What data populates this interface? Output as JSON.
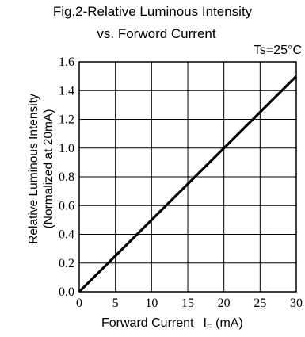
{
  "chart_data": {
    "type": "line",
    "title": "Fig.2-Relative Luminous Intensity",
    "subtitle": "vs. Forword Current",
    "condition": "Ts=25°C",
    "ylabel_line1": "Relative Luminous Intensity",
    "ylabel_line2": "(Normalized at 20mA)",
    "xlabel_text": "Forward Current",
    "xlabel_symbol": "I",
    "xlabel_subscript": "F",
    "xlabel_unit": "(mA)",
    "xlim": [
      0,
      30
    ],
    "ylim": [
      0,
      1.6
    ],
    "x_ticks": [
      "0",
      "5",
      "10",
      "15",
      "20",
      "25",
      "30"
    ],
    "y_ticks": [
      "0.0",
      "0.2",
      "0.4",
      "0.6",
      "0.8",
      "1.0",
      "1.2",
      "1.4",
      "1.6"
    ],
    "grid": true,
    "series": [
      {
        "x": [
          0,
          30
        ],
        "y": [
          0,
          1.5
        ]
      }
    ],
    "colors": {
      "line": "#000000",
      "grid": "#000000"
    }
  }
}
